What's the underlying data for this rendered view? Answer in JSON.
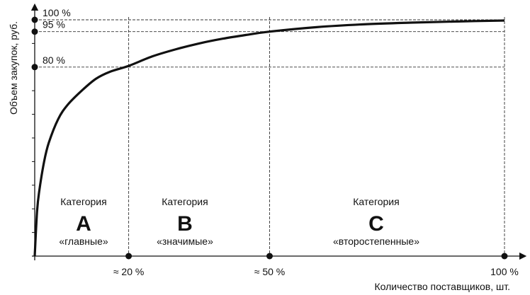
{
  "chart_data": {
    "type": "line",
    "xlabel": "Количество поставщиков, шт.",
    "ylabel": "Объем закупок, руб.",
    "xlim": [
      0,
      100
    ],
    "ylim": [
      0,
      100
    ],
    "x_ticks": [
      {
        "value": 20,
        "label": "≈ 20 %"
      },
      {
        "value": 50,
        "label": "≈ 50 %"
      },
      {
        "value": 100,
        "label": "100 %"
      }
    ],
    "y_ticks": [
      {
        "value": 80,
        "label": "80 %"
      },
      {
        "value": 95,
        "label": "95 %"
      },
      {
        "value": 100,
        "label": "100 %"
      }
    ],
    "series": [
      {
        "x": [
          0,
          0.5,
          1,
          2,
          3,
          5,
          7,
          10,
          13,
          16,
          20,
          25,
          30,
          35,
          40,
          45,
          50,
          60,
          70,
          80,
          90,
          100
        ],
        "y": [
          0,
          19,
          28,
          40,
          48,
          58,
          64,
          70,
          75,
          78,
          80.5,
          84.5,
          87.5,
          90,
          92,
          93.6,
          95,
          96.9,
          98.1,
          98.8,
          99.3,
          99.7
        ]
      }
    ],
    "categories": [
      {
        "title": "Категория",
        "letter": "A",
        "desc": "«главные»"
      },
      {
        "title": "Категория",
        "letter": "B",
        "desc": "«значимые»"
      },
      {
        "title": "Категория",
        "letter": "C",
        "desc": "«второстепенные»"
      }
    ],
    "colors": {
      "curve": "#111111",
      "axis": "#111111",
      "guide": "#333333"
    },
    "grid": false,
    "legend": "none"
  }
}
